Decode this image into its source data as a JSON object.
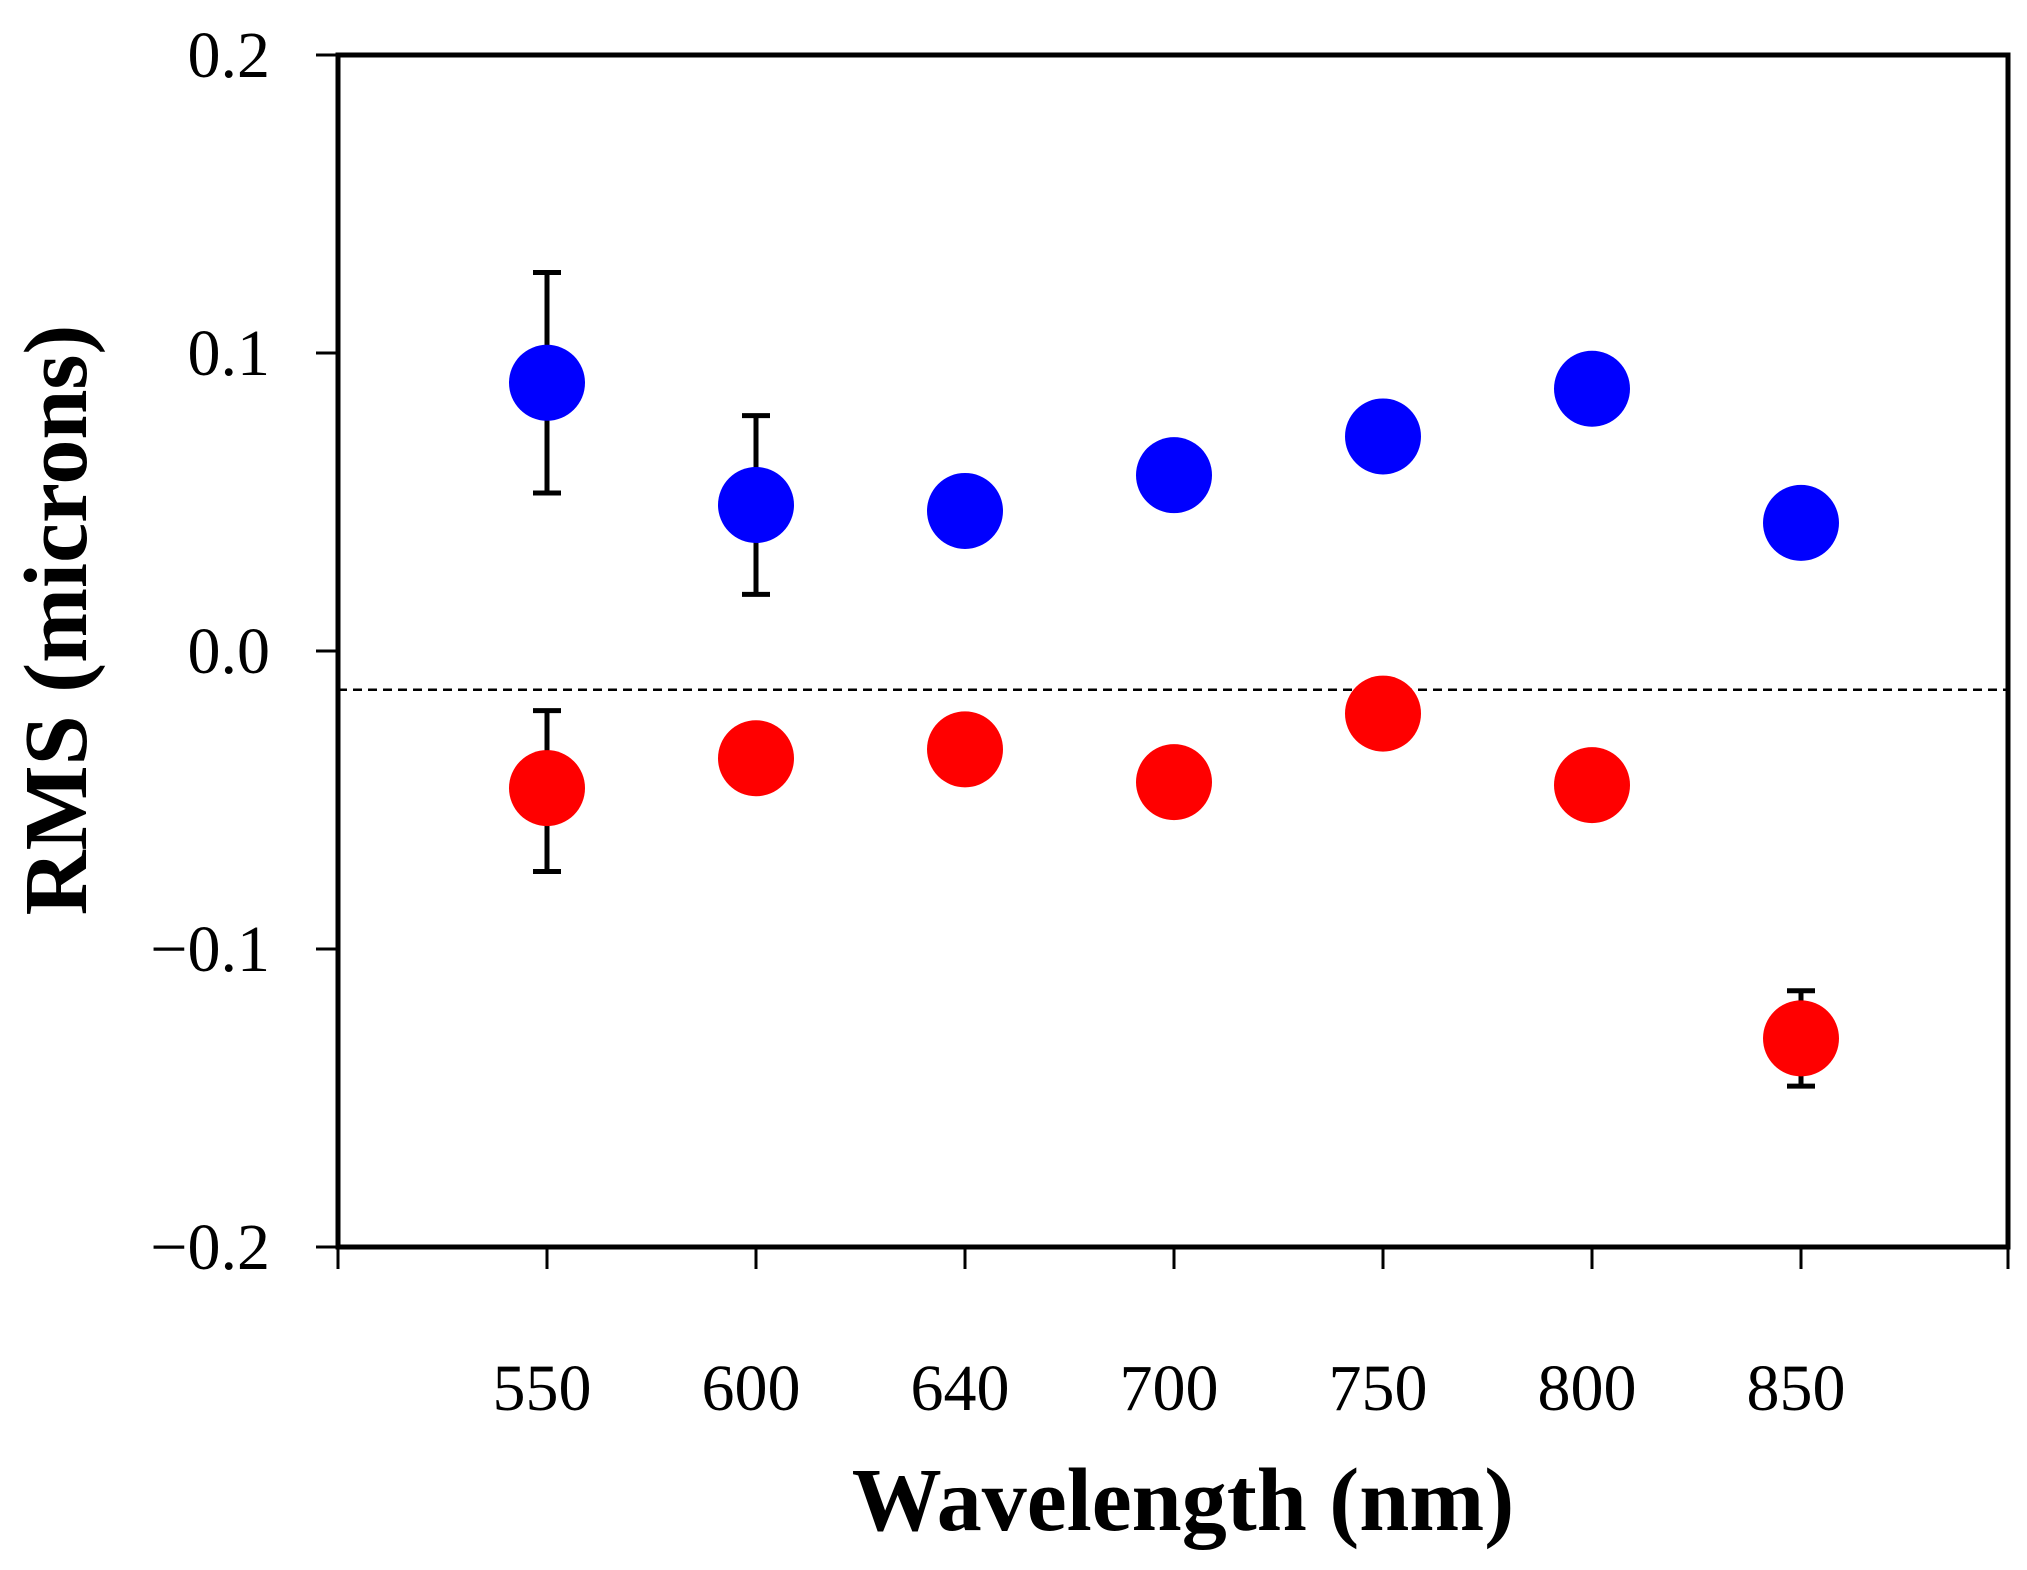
{
  "chart_data": {
    "type": "scatter",
    "title": "",
    "xlabel": "Wavelength (nm)",
    "ylabel": "RMS (microns)",
    "categories": [
      "550",
      "600",
      "640",
      "700",
      "750",
      "800",
      "850"
    ],
    "ylim": [
      -0.2,
      0.2
    ],
    "yticks": [
      0.2,
      0.1,
      0.0,
      -0.1,
      -0.2
    ],
    "ytick_labels": [
      "0.2",
      "0.1",
      "0.0",
      "−0.1",
      "−0.2"
    ],
    "reference_line": {
      "y": -0.013,
      "style": "dashed",
      "color": "#000000"
    },
    "grid": false,
    "legend": "none",
    "series": [
      {
        "color": "#0000ff",
        "values": [
          0.09,
          0.049,
          0.047,
          0.059,
          0.072,
          0.088,
          0.043
        ],
        "error_bars": [
          {
            "index": 0,
            "low": 0.053,
            "high": 0.127
          },
          {
            "index": 1,
            "low": 0.019,
            "high": 0.079
          }
        ]
      },
      {
        "color": "#ff0000",
        "values": [
          -0.046,
          -0.036,
          -0.033,
          -0.044,
          -0.021,
          -0.045,
          -0.13
        ],
        "error_bars": [
          {
            "index": 0,
            "low": -0.074,
            "high": -0.02
          },
          {
            "index": 6,
            "low": -0.146,
            "high": -0.114
          }
        ]
      }
    ]
  }
}
